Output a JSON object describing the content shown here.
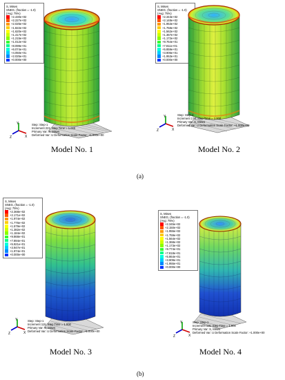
{
  "colors": {
    "legend_scale": [
      "#ff0000",
      "#ff5500",
      "#ff9900",
      "#ffcc00",
      "#ffff00",
      "#ccff00",
      "#88ff00",
      "#33ff33",
      "#00ff88",
      "#00ffdd",
      "#00ccff",
      "#0088ff",
      "#0033ff"
    ]
  },
  "models": [
    {
      "label": "Model No. 1",
      "legend": {
        "var": "S, Mises",
        "section": "SNEG, (fraction = -1.0)",
        "avg": "(Avg: 75%)",
        "values": [
          "+2.430e+02",
          "+2.227e+02",
          "+2.025e+02",
          "+1.822e+02",
          "+1.620e+02",
          "+1.417e+02",
          "+1.215e+02",
          "+1.012e+02",
          "+8.099e+01",
          "+6.074e+01",
          "+4.050e+01",
          "+2.025e+01",
          "+0.000e+00"
        ]
      },
      "info": {
        "step": "Step: Step-1",
        "increment": "Increment    221: Step Time =    1.000",
        "primary": "Primary Var: S, Mises",
        "deformed": "Deformed Var: U   Deformation Scale Factor: +1.000e+00"
      }
    },
    {
      "label": "Model No. 2",
      "legend": {
        "var": "S, Mises",
        "section": "SNEG, (fraction = -1.0)",
        "avg": "(Avg: 75%)",
        "values": [
          "+2.343e+02",
          "+2.148e+02",
          "+1.953e+02",
          "+1.758e+02",
          "+1.562e+02",
          "+1.367e+02",
          "+1.172e+02",
          "+9.764e+01",
          "+7.811e+01",
          "+5.859e+01",
          "+3.906e+01",
          "+1.953e+01",
          "+0.000e+00"
        ]
      },
      "info": {
        "step": "Step: Step-1",
        "increment": "Increment    176: Step Time =    1.000",
        "primary": "Primary Var: S, Mises",
        "deformed": "Deformed Var: U   Deformation Scale Factor: +1.000e+00"
      }
    },
    {
      "label": "Model No. 3",
      "legend": {
        "var": "S, Mises",
        "section": "SNEG, (fraction = -1.0)",
        "avg": "(Avg: 75%)",
        "values": [
          "+2.368e+02",
          "+2.171e+02",
          "+1.974e+02",
          "+1.776e+02",
          "+1.579e+02",
          "+1.382e+02",
          "+1.184e+02",
          "+9.868e+01",
          "+7.894e+01",
          "+5.921e+01",
          "+3.947e+01",
          "+1.974e+01",
          "+0.000e+00"
        ]
      },
      "info": {
        "step": "Step: Step-1",
        "increment": "Increment    115: Step Time =    1.000",
        "primary": "Primary Var: S, Mises",
        "deformed": "Deformed Var: U   Deformation Scale Factor: +1.000e+00"
      }
    },
    {
      "label": "Model No. 4",
      "legend": {
        "var": "S, Mises",
        "section": "SNEG, (fraction = -1.0)",
        "avg": "(Avg: 75%)",
        "values": [
          "+2.345e+02",
          "+2.150e+02",
          "+1.955e+02",
          "+1.759e+02",
          "+1.564e+02",
          "+1.368e+02",
          "+1.173e+02",
          "+9.774e+01",
          "+7.818e+01",
          "+5.864e+01",
          "+3.909e+01",
          "+1.955e+01",
          "+0.000e+00"
        ]
      },
      "info": {
        "step": "Step: Step-1",
        "increment": "Increment    115: Step Time =    1.000",
        "primary": "Primary Var: S, Mises",
        "deformed": "Deformed Var: U   Deformation Scale Factor: +1.000e+00"
      }
    }
  ],
  "subfigures": {
    "a": "(a)",
    "b": "(b)"
  },
  "axis_letters": {
    "y": "Y",
    "x": "X",
    "z": "Z"
  }
}
